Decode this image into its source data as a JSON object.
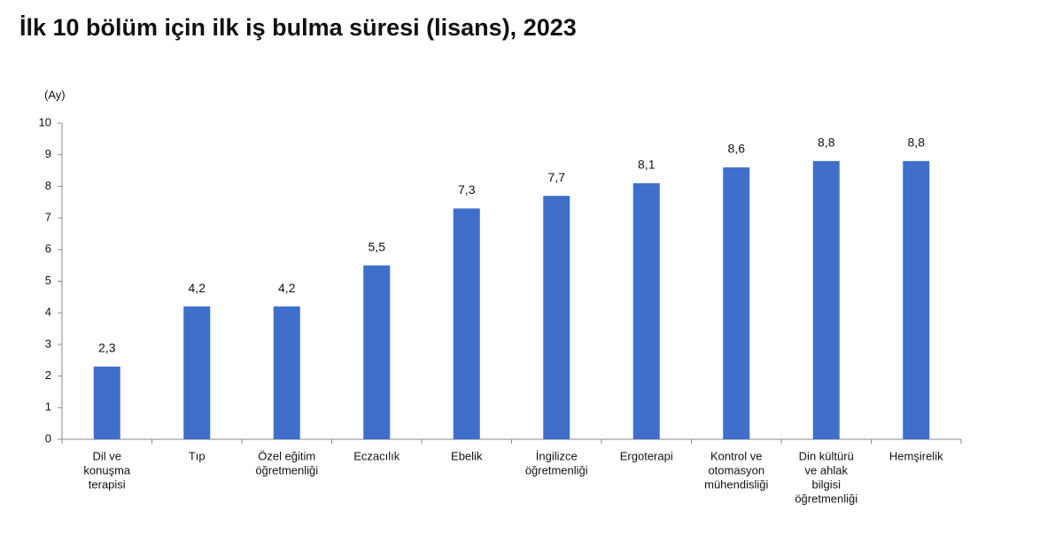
{
  "chart_data": {
    "type": "bar",
    "title": "İlk 10 bölüm için ilk iş bulma süresi (lisans), 2023",
    "y_label": "(Ay)",
    "categories": [
      [
        "Dil ve",
        "konuşma",
        "terapisi"
      ],
      [
        "Tıp"
      ],
      [
        "Özel eğitim",
        "öğretmenliği"
      ],
      [
        "Eczacılık"
      ],
      [
        "Ebelik"
      ],
      [
        "İngilizce",
        "öğretmenliği"
      ],
      [
        "Ergoterapi"
      ],
      [
        "Kontrol ve",
        "otomasyon",
        "mühendisliği"
      ],
      [
        "Din kültürü",
        "ve ahlak",
        "bilgisi",
        "öğretmenliği"
      ],
      [
        "Hemşirelik"
      ]
    ],
    "values": [
      2.3,
      4.2,
      4.2,
      5.5,
      7.3,
      7.7,
      8.1,
      8.6,
      8.8,
      8.8
    ],
    "value_labels": [
      "2,3",
      "4,2",
      "4,2",
      "5,5",
      "7,3",
      "7,7",
      "8,1",
      "8,6",
      "8,8",
      "8,8"
    ],
    "color": "#3f6fcb",
    "ylim": [
      0,
      10
    ],
    "yticks": [
      0,
      1,
      2,
      3,
      4,
      5,
      6,
      7,
      8,
      9,
      10
    ],
    "grid": false
  }
}
